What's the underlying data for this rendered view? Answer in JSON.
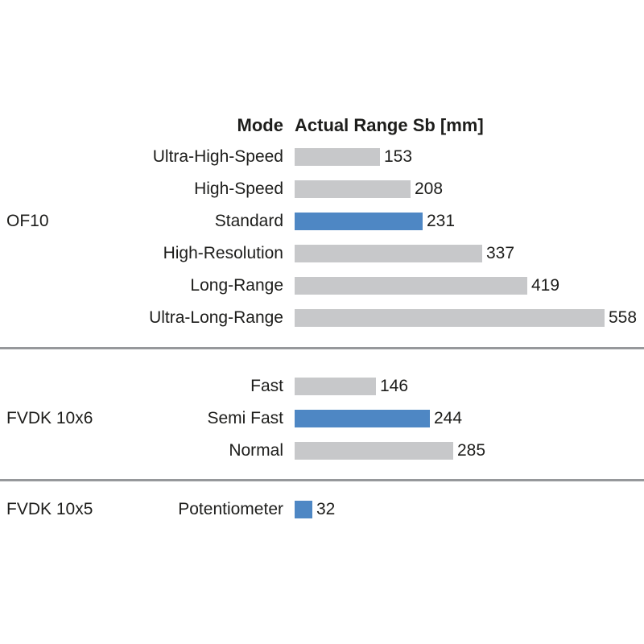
{
  "header": {
    "mode_label": "Mode",
    "value_label": "Actual Range Sb [mm]"
  },
  "colors": {
    "bar_default": "#c7c8ca",
    "bar_highlight": "#4e87c4",
    "divider": "#96989b",
    "text": "#1d1d1b"
  },
  "chart_data": {
    "type": "bar",
    "orientation": "horizontal",
    "title": "",
    "xlabel": "Actual Range Sb [mm]",
    "ylabel": "Mode",
    "unit": "mm",
    "value_axis_range": [
      0,
      558
    ],
    "grid": false,
    "legend": false,
    "columns": [
      "Mode",
      "Actual Range Sb [mm]"
    ],
    "groups": [
      {
        "name": "OF10",
        "rows": [
          {
            "mode": "Ultra-High-Speed",
            "value": 153,
            "highlight": false
          },
          {
            "mode": "High-Speed",
            "value": 208,
            "highlight": false
          },
          {
            "mode": "Standard",
            "value": 231,
            "highlight": true
          },
          {
            "mode": "High-Resolution",
            "value": 337,
            "highlight": false
          },
          {
            "mode": "Long-Range",
            "value": 419,
            "highlight": false
          },
          {
            "mode": "Ultra-Long-Range",
            "value": 558,
            "highlight": false
          }
        ]
      },
      {
        "name": "FVDK 10x6",
        "rows": [
          {
            "mode": "Fast",
            "value": 146,
            "highlight": false
          },
          {
            "mode": "Semi Fast",
            "value": 244,
            "highlight": true
          },
          {
            "mode": "Normal",
            "value": 285,
            "highlight": false
          }
        ]
      },
      {
        "name": "FVDK 10x5",
        "rows": [
          {
            "mode": "Potentiometer",
            "value": 32,
            "highlight": true
          }
        ]
      }
    ]
  }
}
